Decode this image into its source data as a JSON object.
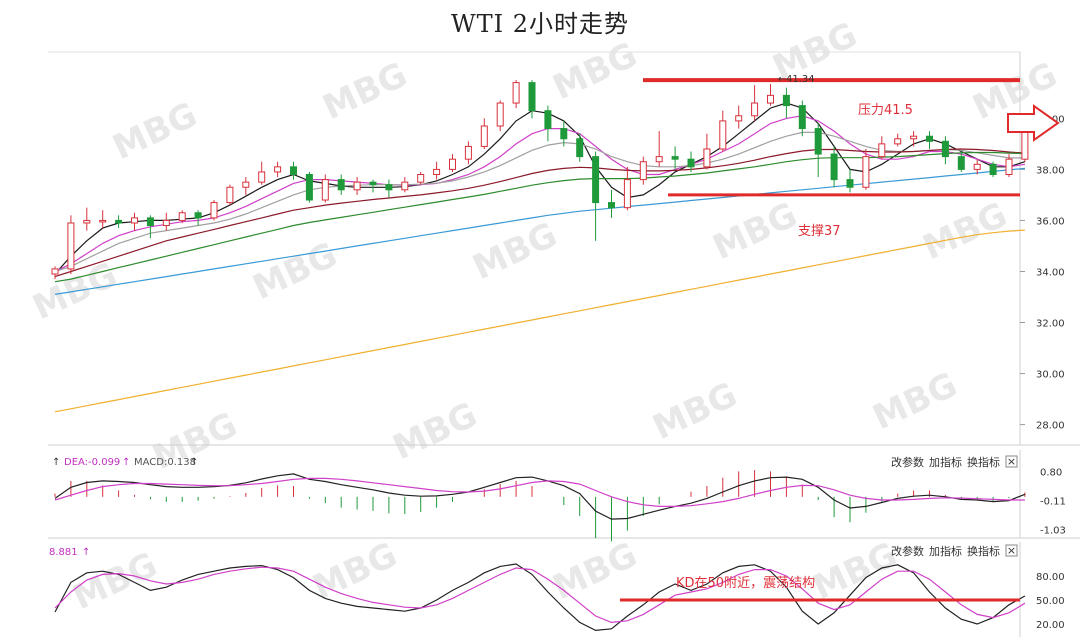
{
  "chart_data": {
    "type": "candlestick",
    "title": "WTI 2小时走势",
    "main": {
      "yticks": [
        "40.00",
        "38.00",
        "36.00",
        "34.00",
        "32.00",
        "30.00",
        "28.00"
      ],
      "ylim": [
        27.2,
        42.6
      ],
      "high_label": "41.34",
      "resistance": {
        "value": 41.5,
        "label": "压力41.5"
      },
      "support": {
        "value": 37,
        "label": "支撑37"
      },
      "candles": [
        [
          33.9,
          34.1,
          34.2,
          33.7
        ],
        [
          34.1,
          35.9,
          36.2,
          33.9
        ],
        [
          35.9,
          36.0,
          36.5,
          35.6
        ],
        [
          36.0,
          36.0,
          36.4,
          35.7
        ],
        [
          36.0,
          35.9,
          36.2,
          35.7
        ],
        [
          35.9,
          36.1,
          36.3,
          35.6
        ],
        [
          36.1,
          35.8,
          36.2,
          35.3
        ],
        [
          35.8,
          36.0,
          36.3,
          35.6
        ],
        [
          36.0,
          36.3,
          36.4,
          35.9
        ],
        [
          36.3,
          36.1,
          36.4,
          35.8
        ],
        [
          36.1,
          36.7,
          36.8,
          36.0
        ],
        [
          36.7,
          37.3,
          37.4,
          36.6
        ],
        [
          37.3,
          37.5,
          37.7,
          37.0
        ],
        [
          37.5,
          37.9,
          38.3,
          37.4
        ],
        [
          37.9,
          38.1,
          38.3,
          37.7
        ],
        [
          38.1,
          37.8,
          38.3,
          37.6
        ],
        [
          37.8,
          36.8,
          37.9,
          36.7
        ],
        [
          36.8,
          37.6,
          37.8,
          36.7
        ],
        [
          37.6,
          37.2,
          37.8,
          37.0
        ],
        [
          37.2,
          37.5,
          37.7,
          37.0
        ],
        [
          37.5,
          37.4,
          37.6,
          37.1
        ],
        [
          37.4,
          37.2,
          37.6,
          36.9
        ],
        [
          37.2,
          37.5,
          37.7,
          37.1
        ],
        [
          37.5,
          37.8,
          37.9,
          37.4
        ],
        [
          37.8,
          38.0,
          38.3,
          37.6
        ],
        [
          38.0,
          38.4,
          38.6,
          37.9
        ],
        [
          38.4,
          38.9,
          39.1,
          38.2
        ],
        [
          38.9,
          39.7,
          40.0,
          38.8
        ],
        [
          39.7,
          40.6,
          40.7,
          39.5
        ],
        [
          40.6,
          41.4,
          41.5,
          40.4
        ],
        [
          41.4,
          40.3,
          41.5,
          40.0
        ],
        [
          40.3,
          39.6,
          40.5,
          39.1
        ],
        [
          39.6,
          39.2,
          39.9,
          38.9
        ],
        [
          39.2,
          38.5,
          39.4,
          38.3
        ],
        [
          38.5,
          36.7,
          38.7,
          35.2
        ],
        [
          36.7,
          36.5,
          37.2,
          36.1
        ],
        [
          36.5,
          37.6,
          38.1,
          36.4
        ],
        [
          37.6,
          38.3,
          38.5,
          37.4
        ],
        [
          38.3,
          38.5,
          39.5,
          38.1
        ],
        [
          38.5,
          38.4,
          38.9,
          38.0
        ],
        [
          38.4,
          38.1,
          38.7,
          37.9
        ],
        [
          38.1,
          38.8,
          39.4,
          38.0
        ],
        [
          38.8,
          39.9,
          40.3,
          38.7
        ],
        [
          39.9,
          40.1,
          40.5,
          39.6
        ],
        [
          40.1,
          40.6,
          41.3,
          39.9
        ],
        [
          40.6,
          40.9,
          41.34,
          40.5
        ],
        [
          40.9,
          40.5,
          41.2,
          40.0
        ],
        [
          40.5,
          39.6,
          40.7,
          39.3
        ],
        [
          39.6,
          38.6,
          39.8,
          37.7
        ],
        [
          38.6,
          37.6,
          38.9,
          37.3
        ],
        [
          37.6,
          37.3,
          38.0,
          37.1
        ],
        [
          37.3,
          38.5,
          38.8,
          37.2
        ],
        [
          38.5,
          39.0,
          39.3,
          38.4
        ],
        [
          39.0,
          39.2,
          39.4,
          38.9
        ],
        [
          39.2,
          39.3,
          39.5,
          38.9
        ],
        [
          39.3,
          39.1,
          39.5,
          38.8
        ],
        [
          39.1,
          38.5,
          39.3,
          38.2
        ],
        [
          38.5,
          38.0,
          38.7,
          37.9
        ],
        [
          38.0,
          38.2,
          38.4,
          37.8
        ],
        [
          38.2,
          37.8,
          38.3,
          37.7
        ],
        [
          37.8,
          38.4,
          38.6,
          37.7
        ],
        [
          38.4,
          39.5,
          39.8,
          38.3
        ]
      ]
    },
    "macd": {
      "dea_label": "DEA:-0.099",
      "macd_label": "MACD:0.138",
      "yticks": [
        "0.80",
        "-0.11",
        "-1.03"
      ],
      "ylim": [
        -1.2,
        1.0
      ],
      "dif": [
        -0.05,
        0.3,
        0.45,
        0.5,
        0.48,
        0.45,
        0.38,
        0.32,
        0.3,
        0.3,
        0.32,
        0.36,
        0.44,
        0.56,
        0.66,
        0.72,
        0.55,
        0.48,
        0.38,
        0.3,
        0.22,
        0.12,
        0.05,
        0.02,
        0.03,
        0.08,
        0.15,
        0.3,
        0.45,
        0.6,
        0.62,
        0.5,
        0.35,
        0.1,
        -0.45,
        -0.7,
        -0.68,
        -0.55,
        -0.42,
        -0.3,
        -0.2,
        -0.05,
        0.15,
        0.35,
        0.5,
        0.6,
        0.62,
        0.55,
        0.3,
        -0.1,
        -0.35,
        -0.3,
        -0.18,
        -0.05,
        0.02,
        0.05,
        0.0,
        -0.08,
        -0.1,
        -0.15,
        -0.12,
        0.08
      ],
      "dea": [
        -0.1,
        0.05,
        0.2,
        0.32,
        0.38,
        0.42,
        0.42,
        0.4,
        0.38,
        0.36,
        0.35,
        0.35,
        0.38,
        0.42,
        0.48,
        0.55,
        0.58,
        0.58,
        0.55,
        0.5,
        0.44,
        0.38,
        0.32,
        0.26,
        0.2,
        0.16,
        0.15,
        0.18,
        0.25,
        0.35,
        0.45,
        0.5,
        0.48,
        0.4,
        0.2,
        0.0,
        -0.15,
        -0.25,
        -0.3,
        -0.3,
        -0.28,
        -0.22,
        -0.15,
        -0.05,
        0.08,
        0.2,
        0.3,
        0.36,
        0.35,
        0.22,
        0.05,
        -0.05,
        -0.1,
        -0.1,
        -0.08,
        -0.05,
        -0.03,
        -0.04,
        -0.06,
        -0.08,
        -0.1,
        -0.099
      ],
      "hist": [
        0.1,
        0.5,
        0.5,
        0.36,
        0.2,
        0.06,
        -0.08,
        -0.16,
        -0.16,
        -0.12,
        -0.06,
        0.02,
        0.12,
        0.28,
        0.36,
        0.34,
        -0.06,
        -0.2,
        -0.34,
        -0.4,
        -0.44,
        -0.52,
        -0.54,
        -0.48,
        -0.34,
        -0.16,
        0.0,
        0.24,
        0.4,
        0.5,
        0.34,
        0.0,
        -0.26,
        -0.6,
        -1.3,
        -1.4,
        -1.06,
        -0.6,
        -0.24,
        0.0,
        0.16,
        0.34,
        0.6,
        0.8,
        0.84,
        0.8,
        0.64,
        0.38,
        -0.1,
        -0.64,
        -0.8,
        -0.5,
        -0.16,
        0.1,
        0.2,
        0.2,
        0.06,
        -0.08,
        -0.08,
        -0.14,
        -0.04,
        0.138
      ]
    },
    "kd": {
      "label": "8.881",
      "yticks": [
        "80.00",
        "50.00",
        "20.00"
      ],
      "ylim": [
        10,
        100
      ],
      "note": {
        "value": 50,
        "label": "KD在50附近，震荡结构"
      },
      "k": [
        35,
        72,
        84,
        86,
        82,
        72,
        62,
        66,
        75,
        82,
        86,
        90,
        92,
        93,
        88,
        78,
        62,
        52,
        46,
        42,
        40,
        38,
        36,
        40,
        50,
        62,
        72,
        84,
        92,
        95,
        82,
        60,
        40,
        22,
        12,
        14,
        30,
        44,
        60,
        70,
        62,
        70,
        84,
        92,
        94,
        86,
        66,
        36,
        20,
        34,
        56,
        78,
        90,
        94,
        84,
        60,
        40,
        26,
        20,
        28,
        44,
        55
      ],
      "d": [
        40,
        60,
        75,
        82,
        83,
        80,
        74,
        70,
        72,
        76,
        82,
        86,
        89,
        91,
        90,
        86,
        76,
        66,
        58,
        52,
        47,
        44,
        41,
        40,
        44,
        52,
        62,
        72,
        82,
        90,
        88,
        76,
        62,
        46,
        30,
        22,
        24,
        32,
        44,
        56,
        60,
        64,
        72,
        82,
        88,
        88,
        80,
        64,
        46,
        38,
        44,
        60,
        76,
        86,
        86,
        76,
        60,
        44,
        32,
        28,
        34,
        46
      ]
    },
    "overlays": [
      {
        "name": "",
        "color": "#1a1a1a",
        "values": [
          33.9,
          34.6,
          35.2,
          35.7,
          35.9,
          35.95,
          36.0,
          36.0,
          36.05,
          36.1,
          36.3,
          36.6,
          36.95,
          37.3,
          37.6,
          37.8,
          37.55,
          37.45,
          37.35,
          37.3,
          37.3,
          37.3,
          37.32,
          37.4,
          37.55,
          37.8,
          38.1,
          38.6,
          39.2,
          39.9,
          40.3,
          40.2,
          39.9,
          39.3,
          38.1,
          37.3,
          36.9,
          37.0,
          37.4,
          37.9,
          38.2,
          38.5,
          38.9,
          39.4,
          39.9,
          40.4,
          40.6,
          40.4,
          39.8,
          38.9,
          38.0,
          37.9,
          38.2,
          38.6,
          39.0,
          39.2,
          39.0,
          38.7,
          38.4,
          38.1,
          38.1,
          38.3
        ]
      },
      {
        "name": "",
        "color": "#d040c8",
        "values": [
          34.0,
          34.3,
          34.7,
          35.1,
          35.4,
          35.6,
          35.75,
          35.85,
          35.95,
          36.0,
          36.1,
          36.3,
          36.55,
          36.85,
          37.15,
          37.45,
          37.6,
          37.6,
          37.55,
          37.5,
          37.45,
          37.4,
          37.38,
          37.4,
          37.45,
          37.6,
          37.8,
          38.1,
          38.5,
          39.0,
          39.4,
          39.6,
          39.6,
          39.4,
          38.9,
          38.4,
          38.0,
          37.8,
          37.8,
          38.0,
          38.2,
          38.4,
          38.7,
          39.0,
          39.4,
          39.8,
          40.0,
          40.1,
          39.9,
          39.5,
          39.0,
          38.6,
          38.4,
          38.4,
          38.5,
          38.7,
          38.7,
          38.6,
          38.4,
          38.2,
          38.1,
          38.2
        ]
      },
      {
        "name": "",
        "color": "#a0a0a0",
        "values": [
          34.0,
          34.2,
          34.5,
          34.8,
          35.1,
          35.3,
          35.5,
          35.6,
          35.7,
          35.8,
          35.9,
          36.05,
          36.25,
          36.5,
          36.75,
          37.0,
          37.2,
          37.3,
          37.35,
          37.38,
          37.4,
          37.4,
          37.4,
          37.42,
          37.46,
          37.55,
          37.7,
          37.9,
          38.15,
          38.45,
          38.75,
          38.95,
          39.05,
          39.0,
          38.8,
          38.5,
          38.3,
          38.15,
          38.1,
          38.1,
          38.15,
          38.25,
          38.4,
          38.6,
          38.85,
          39.1,
          39.3,
          39.45,
          39.45,
          39.3,
          39.1,
          38.9,
          38.75,
          38.7,
          38.7,
          38.75,
          38.78,
          38.75,
          38.65,
          38.55,
          38.45,
          38.45
        ]
      },
      {
        "name": "",
        "color": "#8b1a2a",
        "values": [
          33.8,
          34.0,
          34.2,
          34.4,
          34.6,
          34.8,
          35.0,
          35.2,
          35.35,
          35.5,
          35.65,
          35.8,
          35.95,
          36.1,
          36.25,
          36.4,
          36.5,
          36.6,
          36.68,
          36.75,
          36.82,
          36.88,
          36.94,
          37.0,
          37.08,
          37.16,
          37.26,
          37.38,
          37.52,
          37.68,
          37.84,
          37.96,
          38.04,
          38.08,
          38.06,
          38.0,
          37.96,
          37.94,
          37.94,
          37.96,
          38.0,
          38.06,
          38.14,
          38.24,
          38.36,
          38.5,
          38.62,
          38.72,
          38.78,
          38.78,
          38.74,
          38.7,
          38.68,
          38.68,
          38.7,
          38.74,
          38.78,
          38.8,
          38.78,
          38.74,
          38.68,
          38.64
        ]
      },
      {
        "name": "",
        "color": "#2e8b2e",
        "values": [
          33.6,
          33.7,
          33.85,
          34.0,
          34.15,
          34.3,
          34.45,
          34.6,
          34.75,
          34.9,
          35.05,
          35.2,
          35.35,
          35.5,
          35.65,
          35.8,
          35.92,
          36.02,
          36.12,
          36.22,
          36.32,
          36.42,
          36.52,
          36.62,
          36.72,
          36.82,
          36.92,
          37.02,
          37.14,
          37.26,
          37.38,
          37.48,
          37.56,
          37.62,
          37.64,
          37.64,
          37.64,
          37.66,
          37.7,
          37.74,
          37.8,
          37.86,
          37.94,
          38.02,
          38.1,
          38.2,
          38.3,
          38.38,
          38.44,
          38.46,
          38.46,
          38.46,
          38.48,
          38.5,
          38.54,
          38.58,
          38.62,
          38.65,
          38.66,
          38.66,
          38.64,
          38.62
        ]
      },
      {
        "name": "",
        "color": "#3a9ad6",
        "values": [
          33.1,
          33.2,
          33.3,
          33.4,
          33.5,
          33.6,
          33.7,
          33.8,
          33.9,
          34.0,
          34.1,
          34.2,
          34.3,
          34.4,
          34.5,
          34.6,
          34.7,
          34.8,
          34.9,
          35.0,
          35.1,
          35.2,
          35.3,
          35.4,
          35.5,
          35.6,
          35.7,
          35.8,
          35.9,
          36.0,
          36.1,
          36.2,
          36.28,
          36.36,
          36.42,
          36.48,
          36.54,
          36.6,
          36.66,
          36.72,
          36.78,
          36.84,
          36.9,
          36.96,
          37.02,
          37.08,
          37.14,
          37.2,
          37.26,
          37.32,
          37.38,
          37.44,
          37.5,
          37.56,
          37.62,
          37.68,
          37.74,
          37.8,
          37.86,
          37.92,
          37.98,
          38.04
        ]
      },
      {
        "name": "",
        "color": "#f0b030",
        "values": [
          28.5,
          28.62,
          28.74,
          28.86,
          28.98,
          29.1,
          29.22,
          29.34,
          29.46,
          29.58,
          29.7,
          29.82,
          29.94,
          30.06,
          30.18,
          30.3,
          30.42,
          30.54,
          30.66,
          30.78,
          30.9,
          31.02,
          31.14,
          31.26,
          31.38,
          31.5,
          31.62,
          31.74,
          31.86,
          31.98,
          32.1,
          32.22,
          32.34,
          32.46,
          32.58,
          32.7,
          32.82,
          32.94,
          33.06,
          33.18,
          33.3,
          33.42,
          33.54,
          33.66,
          33.78,
          33.9,
          34.02,
          34.14,
          34.26,
          34.38,
          34.5,
          34.62,
          34.74,
          34.86,
          34.98,
          35.1,
          35.22,
          35.34,
          35.44,
          35.52,
          35.58,
          35.62
        ]
      }
    ]
  },
  "buttons": {
    "modify": "改参数",
    "add": "加指标",
    "swap": "换指标",
    "close": "×"
  },
  "watermark": "MBG",
  "colors": {
    "up": "#d8303a",
    "down": "#1f9a3a",
    "annotation": "#e0303a"
  }
}
